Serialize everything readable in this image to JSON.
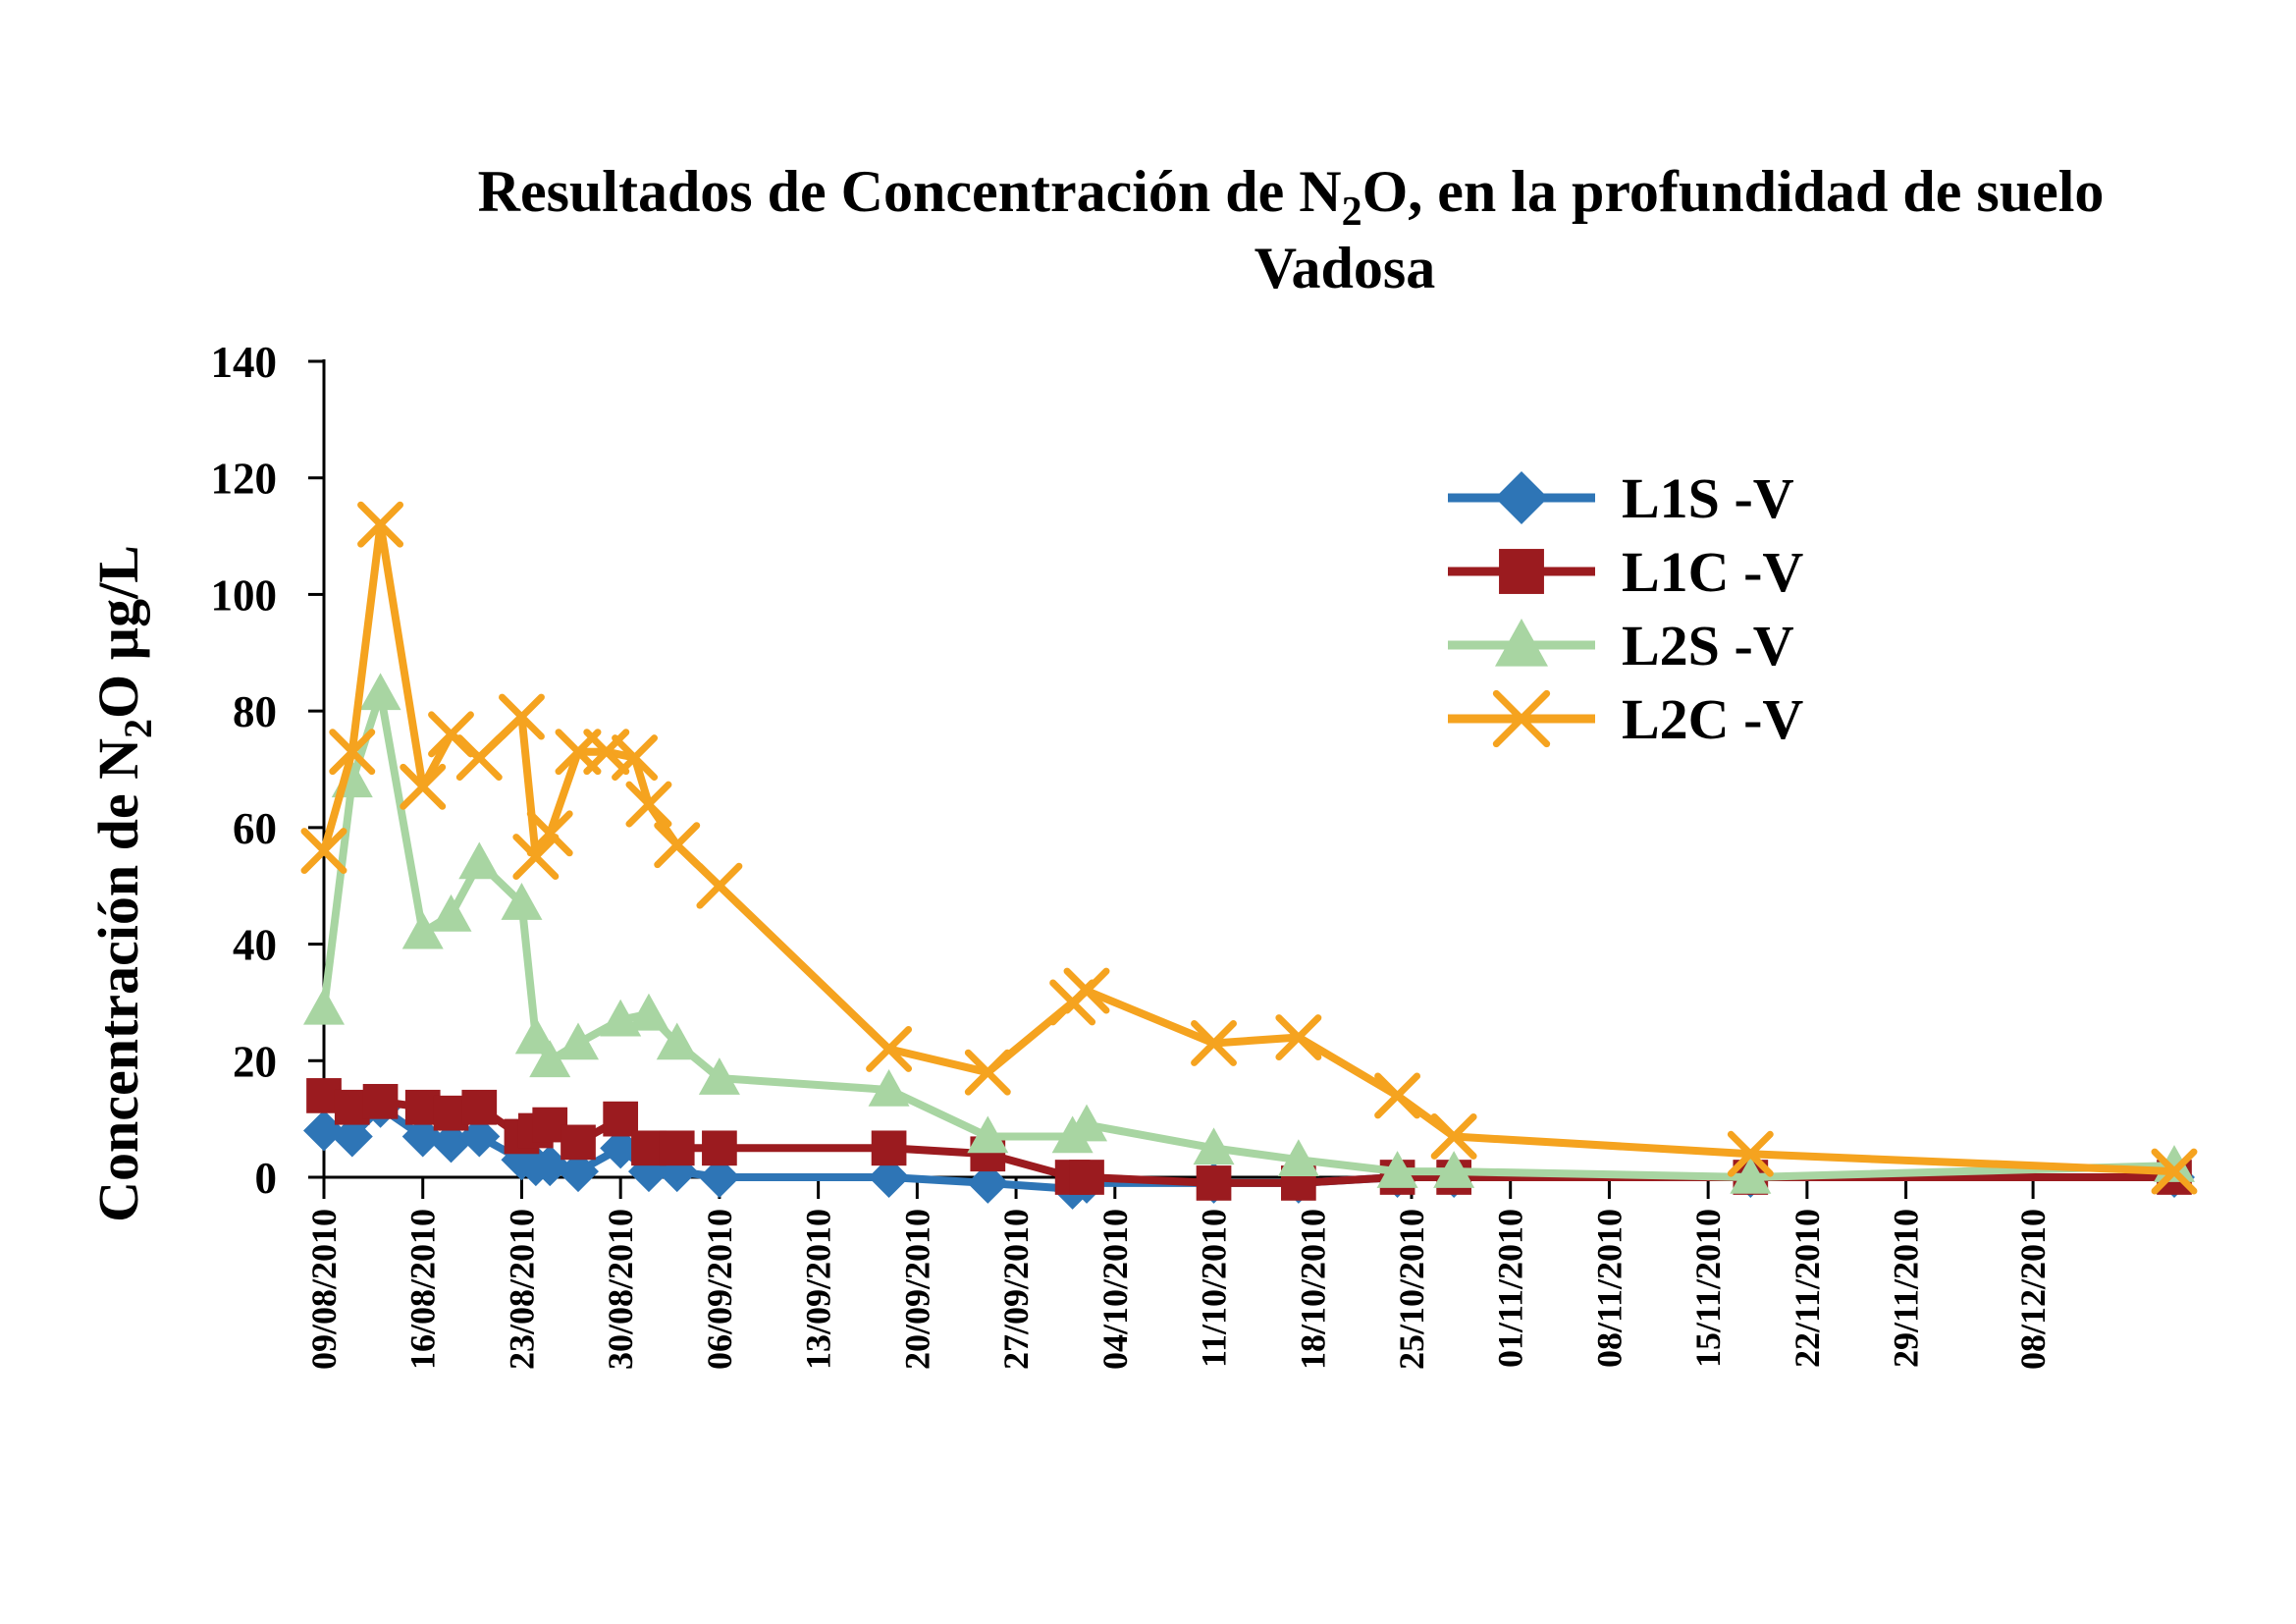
{
  "chart_data": {
    "type": "line",
    "title": {
      "line1_pre": "Resultados de Concentración de N",
      "line1_sub": "2",
      "line1_post": "O, en la profundidad de suelo",
      "line2": "Vadosa"
    },
    "ylabel": {
      "pre": "Concentración de N",
      "sub": "2",
      "post": "O µg/L"
    },
    "xlabel": "",
    "ylim": [
      0,
      140
    ],
    "yticks": [
      "0",
      "20",
      "40",
      "60",
      "80",
      "100",
      "120",
      "140"
    ],
    "xlim": [
      "2010-08-09",
      "2010-12-18"
    ],
    "xticks": [
      "09/08/2010",
      "16/08/2010",
      "23/08/2010",
      "30/08/2010",
      "06/09/2010",
      "13/09/2010",
      "20/09/2010",
      "27/09/2010",
      "04/10/2010",
      "11/10/2010",
      "18/10/2010",
      "25/10/2010",
      "01/11/2010",
      "08/11/2010",
      "15/11/2010",
      "22/11/2010",
      "29/11/2010",
      "08/12/2010"
    ],
    "grid": false,
    "legend_position": "top-right",
    "series": [
      {
        "name": "L1S -V",
        "color": "#2e75b6",
        "marker": "diamond",
        "points": [
          [
            "2010-08-09",
            8
          ],
          [
            "2010-08-11",
            7
          ],
          [
            "2010-08-13",
            12
          ],
          [
            "2010-08-16",
            7
          ],
          [
            "2010-08-18",
            6
          ],
          [
            "2010-08-20",
            7
          ],
          [
            "2010-08-23",
            3
          ],
          [
            "2010-08-24",
            2
          ],
          [
            "2010-08-25",
            2
          ],
          [
            "2010-08-27",
            1
          ],
          [
            "2010-08-30",
            5
          ],
          [
            "2010-09-01",
            1
          ],
          [
            "2010-09-03",
            1
          ],
          [
            "2010-09-06",
            0
          ],
          [
            "2010-09-18",
            0
          ],
          [
            "2010-09-25",
            -1
          ],
          [
            "2010-10-01",
            -2
          ],
          [
            "2010-10-02",
            -1
          ],
          [
            "2010-10-11",
            -1
          ],
          [
            "2010-10-17",
            -1
          ],
          [
            "2010-10-24",
            0
          ],
          [
            "2010-10-28",
            0
          ],
          [
            "2010-11-18",
            0
          ],
          [
            "2010-12-18",
            0
          ]
        ]
      },
      {
        "name": "L1C -V",
        "color": "#9b1b1f",
        "marker": "square",
        "points": [
          [
            "2010-08-09",
            14
          ],
          [
            "2010-08-11",
            12
          ],
          [
            "2010-08-13",
            13
          ],
          [
            "2010-08-16",
            12
          ],
          [
            "2010-08-18",
            11
          ],
          [
            "2010-08-20",
            12
          ],
          [
            "2010-08-23",
            7
          ],
          [
            "2010-08-24",
            8
          ],
          [
            "2010-08-25",
            9
          ],
          [
            "2010-08-27",
            6
          ],
          [
            "2010-08-30",
            10
          ],
          [
            "2010-09-01",
            5
          ],
          [
            "2010-09-03",
            5
          ],
          [
            "2010-09-06",
            5
          ],
          [
            "2010-09-18",
            5
          ],
          [
            "2010-09-25",
            4
          ],
          [
            "2010-10-01",
            0
          ],
          [
            "2010-10-02",
            0
          ],
          [
            "2010-10-11",
            -1
          ],
          [
            "2010-10-17",
            -1
          ],
          [
            "2010-10-24",
            0
          ],
          [
            "2010-10-28",
            0
          ],
          [
            "2010-11-18",
            0
          ],
          [
            "2010-12-18",
            0
          ]
        ]
      },
      {
        "name": "L2S -V",
        "color": "#a8d5a2",
        "marker": "triangle",
        "points": [
          [
            "2010-08-09",
            29
          ],
          [
            "2010-08-11",
            68
          ],
          [
            "2010-08-13",
            83
          ],
          [
            "2010-08-16",
            42
          ],
          [
            "2010-08-18",
            45
          ],
          [
            "2010-08-20",
            54
          ],
          [
            "2010-08-23",
            47
          ],
          [
            "2010-08-24",
            24
          ],
          [
            "2010-08-25",
            20
          ],
          [
            "2010-08-27",
            23
          ],
          [
            "2010-08-30",
            27
          ],
          [
            "2010-09-01",
            28
          ],
          [
            "2010-09-03",
            23
          ],
          [
            "2010-09-06",
            17
          ],
          [
            "2010-09-18",
            15
          ],
          [
            "2010-09-25",
            7
          ],
          [
            "2010-10-01",
            7
          ],
          [
            "2010-10-02",
            9
          ],
          [
            "2010-10-11",
            5
          ],
          [
            "2010-10-17",
            3
          ],
          [
            "2010-10-24",
            1
          ],
          [
            "2010-10-28",
            1
          ],
          [
            "2010-11-18",
            0
          ],
          [
            "2010-12-18",
            2
          ]
        ]
      },
      {
        "name": "L2C -V",
        "color": "#f5a31f",
        "marker": "x",
        "points": [
          [
            "2010-08-09",
            56
          ],
          [
            "2010-08-11",
            73
          ],
          [
            "2010-08-13",
            112
          ],
          [
            "2010-08-16",
            67
          ],
          [
            "2010-08-18",
            76
          ],
          [
            "2010-08-20",
            72
          ],
          [
            "2010-08-23",
            79
          ],
          [
            "2010-08-24",
            55
          ],
          [
            "2010-08-25",
            59
          ],
          [
            "2010-08-27",
            73
          ],
          [
            "2010-08-29",
            73
          ],
          [
            "2010-08-31",
            72
          ],
          [
            "2010-09-01",
            64
          ],
          [
            "2010-09-03",
            57
          ],
          [
            "2010-09-06",
            50
          ],
          [
            "2010-09-18",
            22
          ],
          [
            "2010-09-25",
            18
          ],
          [
            "2010-10-01",
            30
          ],
          [
            "2010-10-02",
            32
          ],
          [
            "2010-10-11",
            23
          ],
          [
            "2010-10-17",
            24
          ],
          [
            "2010-10-24",
            14
          ],
          [
            "2010-10-28",
            7
          ],
          [
            "2010-11-18",
            4
          ],
          [
            "2010-12-18",
            1
          ]
        ]
      }
    ]
  }
}
